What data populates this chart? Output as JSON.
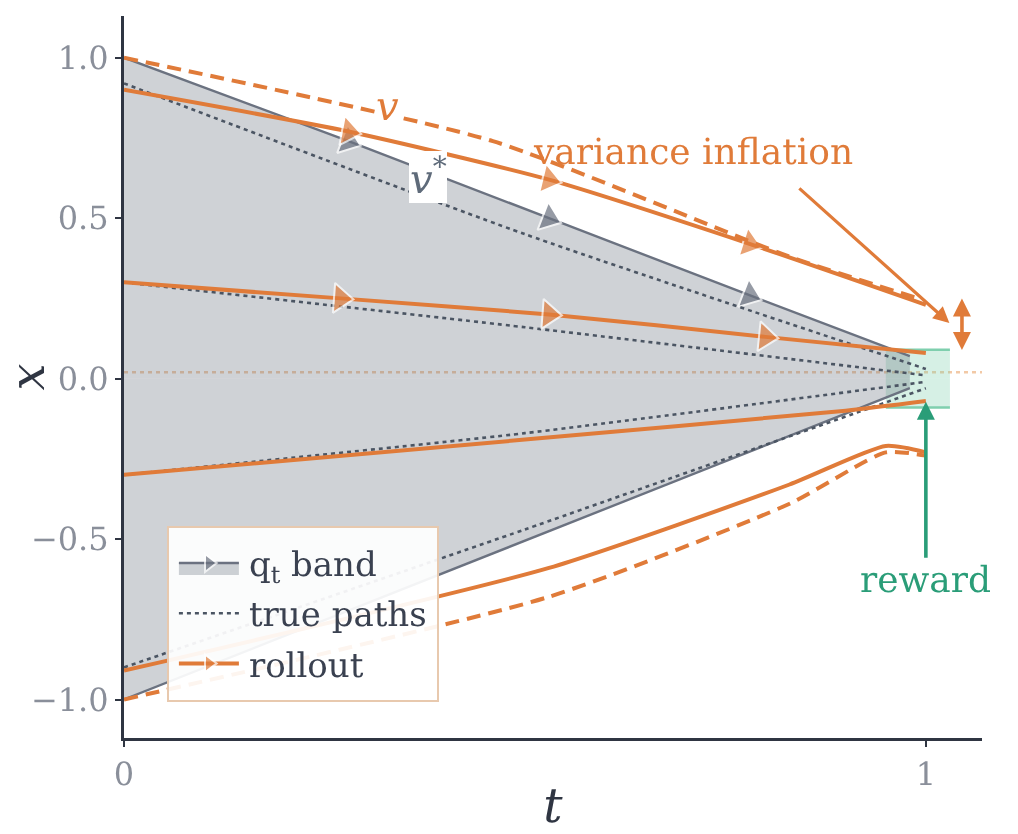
{
  "chart_data": {
    "type": "line",
    "xlabel": "t",
    "ylabel": "x",
    "xlim": [
      0,
      1.07
    ],
    "xticks": [
      0,
      1
    ],
    "ylim": [
      -1.12,
      1.13
    ],
    "yticks": [
      {
        "value": -1,
        "label": "−1.0"
      },
      {
        "value": -0.5,
        "label": "−0.5"
      },
      {
        "value": 0,
        "label": "0.0"
      },
      {
        "value": 0.5,
        "label": "0.5"
      },
      {
        "value": 1,
        "label": "1.0"
      }
    ],
    "series": [
      {
        "type": "area",
        "color": "#7fcfae",
        "x": [
          0.95,
          1.03
        ],
        "values": [
          0.09,
          0.09
        ]
      },
      {
        "type": "area",
        "color": "#7fcfae",
        "x": [
          0.95,
          1.03
        ],
        "values": [
          -0.09,
          -0.09
        ]
      },
      {
        "name": "q$_{t}$ band",
        "type": "area",
        "color": "#6b7280",
        "marker": "triangle",
        "x": [
          0,
          0.28,
          0.53,
          0.78,
          0.98
        ],
        "values": [
          1.0,
          0.74,
          0.5,
          0.26,
          0.07
        ]
      },
      {
        "type": "area",
        "color": "#6b7280",
        "x": [
          0,
          0.98
        ],
        "values": [
          -1.0,
          -0.03
        ]
      },
      {
        "name": "true paths",
        "color": "#4b5563",
        "line_style": "dotted",
        "x": [
          0,
          0.5,
          1
        ],
        "values": [
          0.92,
          0.45,
          0.03
        ]
      },
      {
        "color": "#4b5563",
        "line_style": "dotted",
        "x": [
          0,
          0.5,
          1
        ],
        "values": [
          0.3,
          0.16,
          0.01
        ]
      },
      {
        "color": "#4b5563",
        "line_style": "dotted",
        "x": [
          0,
          0.5,
          1
        ],
        "values": [
          -0.3,
          -0.17,
          -0.01
        ]
      },
      {
        "color": "#4b5563",
        "line_style": "dotted",
        "x": [
          0,
          0.5,
          1
        ],
        "values": [
          -0.9,
          -0.47,
          -0.03
        ]
      },
      {
        "name": "rollout",
        "color": "#e07b39",
        "line_style": "solid",
        "marker": "triangle",
        "x": [
          0,
          0.28,
          0.53,
          0.78,
          1.0
        ],
        "values": [
          0.9,
          0.77,
          0.62,
          0.42,
          0.23
        ]
      },
      {
        "color": "#e07b39",
        "line_style": "solid",
        "marker": "triangle",
        "x": [
          0,
          0.27,
          0.53,
          0.8,
          1.0
        ],
        "values": [
          0.3,
          0.25,
          0.2,
          0.13,
          0.08
        ]
      },
      {
        "color": "#e07b39",
        "line_style": "solid",
        "x": [
          0,
          0.5,
          0.9,
          1.0
        ],
        "values": [
          -0.3,
          -0.19,
          -0.1,
          -0.07
        ]
      },
      {
        "color": "#e07b39",
        "line_style": "solid",
        "x": [
          0,
          0.53,
          0.83,
          0.95,
          1.0
        ],
        "values": [
          -0.91,
          -0.59,
          -0.33,
          -0.21,
          -0.23
        ]
      },
      {
        "color": "#e07b39",
        "line_style": "dashed",
        "x": [
          0,
          0.46,
          0.83,
          0.99
        ],
        "values": [
          1.0,
          0.74,
          0.38,
          0.25
        ]
      },
      {
        "color": "#e07b39",
        "line_style": "dashed",
        "x": [
          0,
          0.53,
          0.83,
          0.95,
          1.0
        ],
        "values": [
          -1.0,
          -0.68,
          -0.39,
          -0.23,
          -0.24
        ]
      }
    ],
    "ref_lines": [
      {
        "axis": "y",
        "value": 0.02,
        "color": "#f2c9a6",
        "line_style": "dotted"
      }
    ],
    "annotations": [
      {
        "text": "v",
        "x": 0.33,
        "y": 0.85
      },
      "v$^{*}$",
      "variance inflation",
      {
        "text": "reward",
        "x": 1.0,
        "y": -0.06
      }
    ],
    "legend": "bottom left",
    "grid": false
  }
}
